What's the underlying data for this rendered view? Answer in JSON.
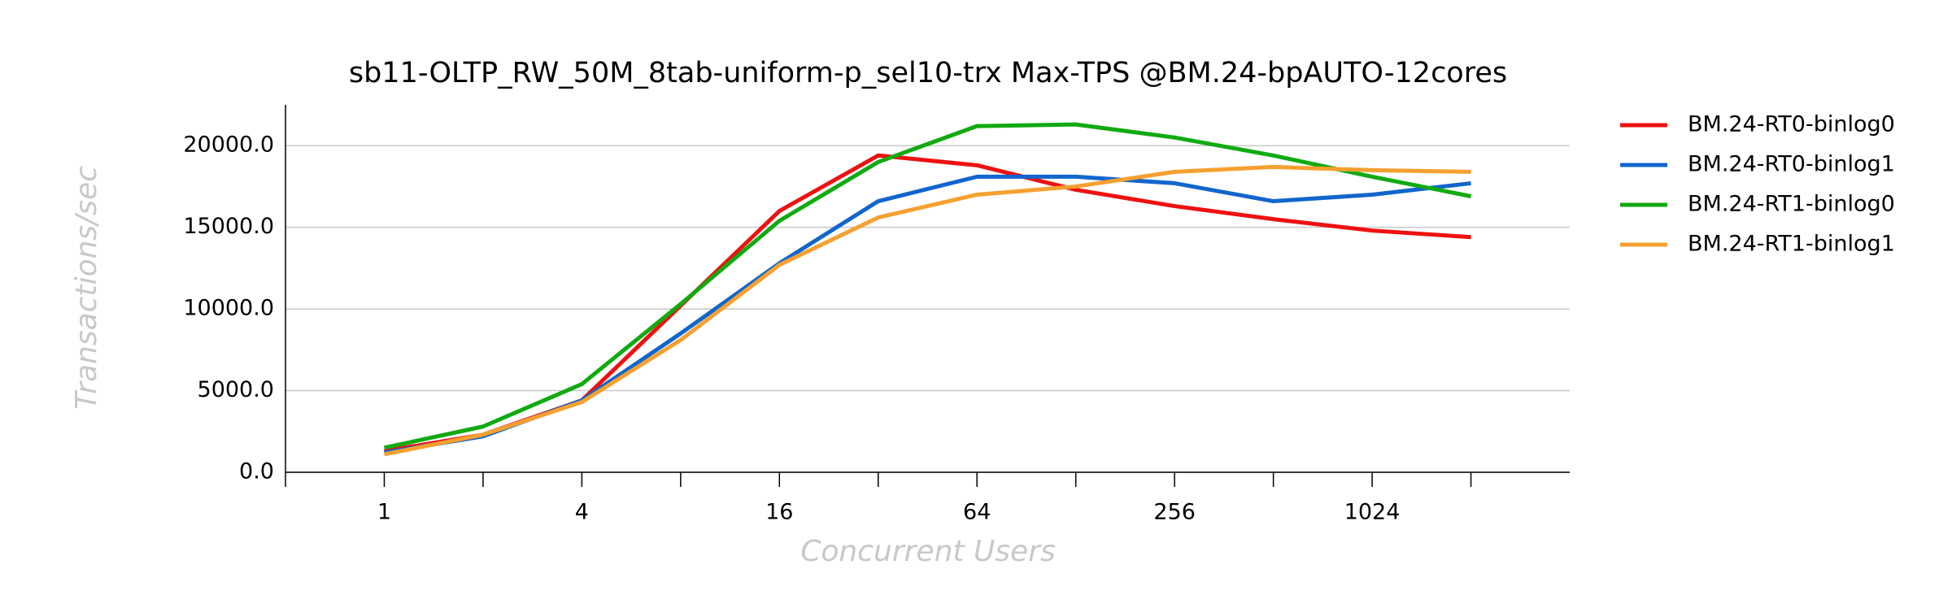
{
  "chart_data": {
    "type": "line",
    "title": "sb11-OLTP_RW_50M_8tab-uniform-p_sel10-trx Max-TPS @BM.24-bpAUTO-12cores",
    "x_label": "Concurrent Users",
    "y_label": "Transactions/sec",
    "x": [
      1,
      2,
      4,
      8,
      16,
      32,
      64,
      128,
      256,
      512,
      1024,
      2048
    ],
    "x_log_base": 2,
    "xlim": [
      0.5,
      4096
    ],
    "xticks": [
      1,
      4,
      16,
      64,
      256,
      1024
    ],
    "xminor_ticks": [
      0.5,
      2,
      8,
      32,
      128,
      512,
      2048
    ],
    "ylim": [
      0,
      22500
    ],
    "yticks": [
      {
        "value": 0,
        "label": "0.0"
      },
      {
        "value": 5000,
        "label": "5000.0"
      },
      {
        "value": 10000,
        "label": "10000.0"
      },
      {
        "value": 15000,
        "label": "15000.0"
      },
      {
        "value": 20000,
        "label": "20000.0"
      }
    ],
    "grid": true,
    "series": [
      {
        "name": "BM.24-RT0-binlog0",
        "color": "#ee1111",
        "values": [
          1300,
          2300,
          4400,
          10200,
          16000,
          19400,
          18800,
          17300,
          16300,
          15500,
          14800,
          14400
        ]
      },
      {
        "name": "BM.24-RT0-binlog1",
        "color": "#1166cc",
        "values": [
          1200,
          2200,
          4400,
          8500,
          12800,
          16600,
          18100,
          18100,
          17700,
          16600,
          17000,
          17700
        ]
      },
      {
        "name": "BM.24-RT1-binlog0",
        "color": "#11aa11",
        "values": [
          1500,
          2800,
          5400,
          10300,
          15400,
          19000,
          21200,
          21300,
          20500,
          19400,
          18100,
          16900
        ]
      },
      {
        "name": "BM.24-RT1-binlog1",
        "color": "#f5a030",
        "values": [
          1100,
          2300,
          4300,
          8100,
          12700,
          15600,
          17000,
          17500,
          18400,
          18700,
          18500,
          18400
        ]
      }
    ]
  }
}
